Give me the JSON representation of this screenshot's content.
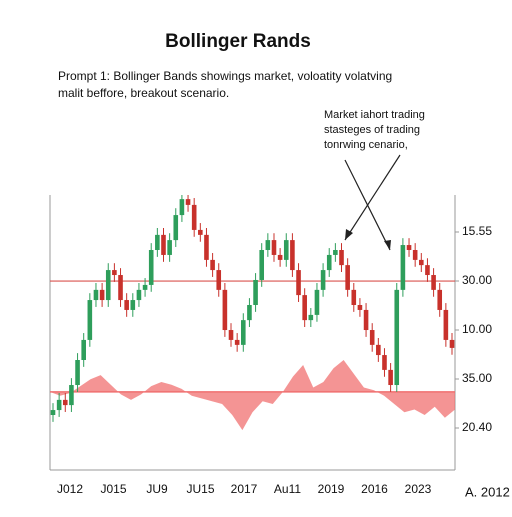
{
  "chart_data": {
    "type": "candlestick",
    "title": "Bollinger Rands",
    "prompt_lines": [
      "Prompt 1:  Bollinger Bands showings market, voloatity volatving",
      "malit beffore, breakout scenario."
    ],
    "annotation_lines": [
      "Market iahort trading",
      "stasteges of trading",
      "tonrwing cenario,"
    ],
    "corner_label": "A. 2012",
    "x_labels": [
      "J012",
      "J015",
      "JU9",
      "JU15",
      "2017",
      "Au11",
      "2019",
      "2016",
      "2023"
    ],
    "y_labels": [
      "15.55",
      "30.00",
      "10.00",
      "35.00",
      "20.40"
    ],
    "ylim": [
      0,
      100
    ],
    "up_color": "#2e9e5b",
    "down_color": "#c8312b",
    "hline": 68.7,
    "hline_color": "#d9534f",
    "series": [
      {
        "values": [
          [
            20,
            24.3,
            17.5,
            21.8
          ],
          [
            21.8,
            28,
            19.3,
            25.5
          ],
          [
            25.5,
            28,
            21.1,
            23.6
          ],
          [
            23.6,
            33.4,
            21.1,
            30.9
          ],
          [
            30.9,
            42.5,
            28.4,
            40
          ],
          [
            40,
            49.8,
            37.5,
            47.3
          ],
          [
            47.3,
            64.3,
            44.8,
            61.8
          ],
          [
            61.8,
            68,
            59.3,
            65.5
          ],
          [
            65.5,
            68,
            59.3,
            61.8
          ],
          [
            61.8,
            75.2,
            59.3,
            72.7
          ],
          [
            72.7,
            75.2,
            68.4,
            70.9
          ],
          [
            70.9,
            73.4,
            59.3,
            61.8
          ],
          [
            61.8,
            64.3,
            55.7,
            58.2
          ],
          [
            58.2,
            64.3,
            55.7,
            61.8
          ],
          [
            61.8,
            68,
            59.3,
            65.5
          ],
          [
            65.5,
            69.8,
            63,
            67.3
          ],
          [
            67.3,
            82.5,
            64.8,
            80
          ],
          [
            80,
            88,
            77.5,
            85.5
          ],
          [
            85.5,
            88,
            75.7,
            78.2
          ],
          [
            78.2,
            86.1,
            75.7,
            83.6
          ],
          [
            83.6,
            95.2,
            81.1,
            92.7
          ],
          [
            92.7,
            100,
            90.2,
            98.5
          ],
          [
            98.5,
            100,
            93.9,
            96.4
          ],
          [
            96.4,
            98.9,
            84.8,
            87.3
          ],
          [
            87.3,
            89.8,
            83,
            85.5
          ],
          [
            85.5,
            88,
            73.9,
            76.4
          ],
          [
            76.4,
            78.9,
            70.2,
            72.7
          ],
          [
            72.7,
            75.2,
            63,
            65.5
          ],
          [
            65.5,
            68,
            48.4,
            50.9
          ],
          [
            50.9,
            53.4,
            44.8,
            47.3
          ],
          [
            47.3,
            49.8,
            43,
            45.5
          ],
          [
            45.5,
            57,
            43,
            54.5
          ],
          [
            54.5,
            62.5,
            52,
            60
          ],
          [
            60,
            71.6,
            57.5,
            69.1
          ],
          [
            69.1,
            82.5,
            66.6,
            80
          ],
          [
            80,
            86.1,
            77.5,
            83.6
          ],
          [
            83.6,
            86.1,
            75.7,
            78.2
          ],
          [
            78.2,
            80.7,
            73.9,
            76.4
          ],
          [
            76.4,
            86.1,
            73.9,
            83.6
          ],
          [
            83.6,
            86.1,
            70.2,
            72.7
          ],
          [
            72.7,
            75.2,
            61.1,
            63.6
          ],
          [
            63.6,
            66.1,
            52,
            54.5
          ],
          [
            54.5,
            58.9,
            52,
            56.4
          ],
          [
            56.4,
            68,
            53.9,
            65.5
          ],
          [
            65.5,
            75.2,
            63,
            72.7
          ],
          [
            72.7,
            80.7,
            70.2,
            78.2
          ],
          [
            78.2,
            82.5,
            75.7,
            80
          ],
          [
            80,
            82.5,
            72,
            74.5
          ],
          [
            74.5,
            77,
            63,
            65.5
          ],
          [
            65.5,
            68,
            57.5,
            60
          ],
          [
            60,
            62.5,
            55.7,
            58.2
          ],
          [
            58.2,
            60.7,
            48.4,
            50.9
          ],
          [
            50.9,
            53.4,
            43,
            45.5
          ],
          [
            45.5,
            48,
            39.3,
            41.8
          ],
          [
            41.8,
            44.3,
            33.9,
            36.4
          ],
          [
            36.4,
            38.9,
            28.4,
            30.9
          ],
          [
            30.9,
            68,
            28.4,
            65.5
          ],
          [
            65.5,
            84.3,
            63,
            81.8
          ],
          [
            81.8,
            84.3,
            77.5,
            80
          ],
          [
            80,
            82.5,
            73.9,
            76.4
          ],
          [
            76.4,
            78.9,
            72,
            74.5
          ],
          [
            74.5,
            77,
            68.4,
            70.9
          ],
          [
            70.9,
            73.4,
            63,
            65.5
          ],
          [
            65.5,
            68,
            55.7,
            58.2
          ],
          [
            58.2,
            60.7,
            44.8,
            47.3
          ],
          [
            47.3,
            49.8,
            41.9,
            44.4
          ]
        ]
      }
    ],
    "oscillator": {
      "color": "#f07070",
      "baseline": 28.4,
      "values": [
        28.4,
        27,
        28,
        30.5,
        33,
        34.5,
        31,
        27.5,
        25.5,
        27.5,
        30.5,
        32,
        31,
        29.5,
        27,
        26,
        25,
        24,
        20,
        14.5,
        21,
        25,
        24,
        28.4,
        34,
        38.2,
        30,
        32,
        37,
        40,
        35,
        30,
        29,
        27,
        24,
        21,
        22,
        20,
        23,
        19,
        22
      ]
    }
  }
}
